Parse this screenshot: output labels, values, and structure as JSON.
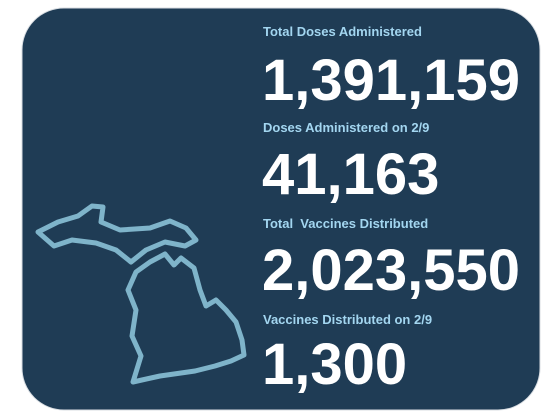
{
  "stats": [
    {
      "label": "Total Doses Administered",
      "value": "1,391,159"
    },
    {
      "label": "Doses Administered on 2/9",
      "value": "41,163"
    },
    {
      "label": "Total  Vaccines Distributed",
      "value": "2,023,550"
    },
    {
      "label": "Vaccines Distributed on 2/9",
      "value": "1,300"
    }
  ]
}
